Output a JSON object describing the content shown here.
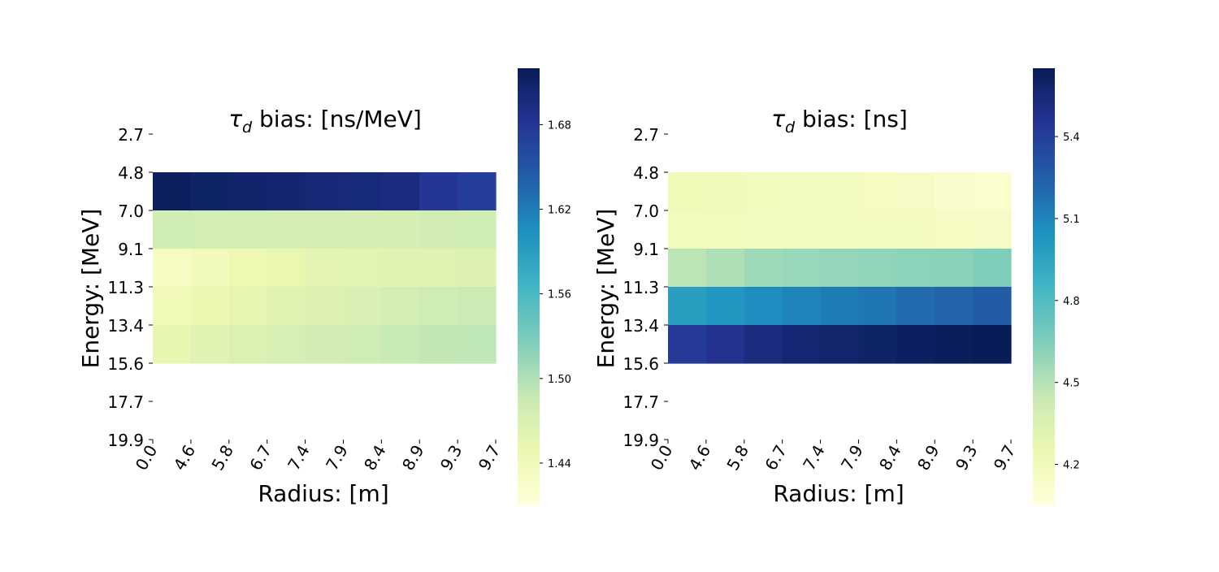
{
  "colormap": [
    "#ffffd9",
    "#edf8b1",
    "#c7e9b4",
    "#7fcdbb",
    "#41b6c4",
    "#1d91c0",
    "#225ea8",
    "#253494",
    "#081d58"
  ],
  "chart_data": [
    {
      "type": "heatmap",
      "title_symbol": "τ",
      "title_sub": "d",
      "title_rest": " bias: [ns/MeV]",
      "xlabel": "Radius: [m]",
      "ylabel": "Energy: [MeV]",
      "x_ticks": [
        "0.0",
        "4.6",
        "5.8",
        "6.7",
        "7.4",
        "7.9",
        "8.4",
        "8.9",
        "9.3",
        "9.7"
      ],
      "y_ticks": [
        "2.7",
        "4.8",
        "7.0",
        "9.1",
        "11.3",
        "13.4",
        "15.6",
        "17.7",
        "19.9"
      ],
      "rows": [
        {
          "energy_from": 4.8,
          "energy_to": 7.0,
          "values": [
            1.715,
            1.71,
            1.707,
            1.705,
            1.7,
            1.698,
            1.695,
            1.68,
            1.672
          ]
        },
        {
          "energy_from": 7.0,
          "energy_to": 9.1,
          "values": [
            1.478,
            1.475,
            1.475,
            1.474,
            1.474,
            1.474,
            1.474,
            1.477,
            1.478
          ]
        },
        {
          "energy_from": 9.1,
          "energy_to": 11.3,
          "values": [
            1.432,
            1.44,
            1.447,
            1.452,
            1.458,
            1.46,
            1.462,
            1.463,
            1.465
          ]
        },
        {
          "energy_from": 11.3,
          "energy_to": 13.4,
          "values": [
            1.442,
            1.45,
            1.456,
            1.462,
            1.466,
            1.47,
            1.475,
            1.48,
            1.482
          ]
        },
        {
          "energy_from": 13.4,
          "energy_to": 15.6,
          "values": [
            1.455,
            1.462,
            1.467,
            1.472,
            1.476,
            1.48,
            1.486,
            1.49,
            1.492
          ]
        }
      ],
      "colorbar_ticks": [
        "1.44",
        "1.50",
        "1.56",
        "1.62",
        "1.68"
      ],
      "vmin": 1.41,
      "vmax": 1.72
    },
    {
      "type": "heatmap",
      "title_symbol": "τ",
      "title_sub": "d",
      "title_rest": " bias: [ns]",
      "xlabel": "Radius: [m]",
      "ylabel": "Energy: [MeV]",
      "x_ticks": [
        "0.0",
        "4.6",
        "5.8",
        "6.7",
        "7.4",
        "7.9",
        "8.4",
        "8.9",
        "9.3",
        "9.7"
      ],
      "y_ticks": [
        "2.7",
        "4.8",
        "7.0",
        "9.1",
        "11.3",
        "13.4",
        "15.6",
        "17.7",
        "19.9"
      ],
      "rows": [
        {
          "energy_from": 4.8,
          "energy_to": 7.0,
          "values": [
            4.22,
            4.2,
            4.19,
            4.18,
            4.17,
            4.16,
            4.15,
            4.12,
            4.1
          ]
        },
        {
          "energy_from": 7.0,
          "energy_to": 9.1,
          "values": [
            4.19,
            4.19,
            4.18,
            4.18,
            4.17,
            4.17,
            4.17,
            4.16,
            4.15
          ]
        },
        {
          "energy_from": 9.1,
          "energy_to": 11.3,
          "values": [
            4.48,
            4.52,
            4.56,
            4.58,
            4.59,
            4.6,
            4.61,
            4.62,
            4.65
          ]
        },
        {
          "energy_from": 11.3,
          "energy_to": 13.4,
          "values": [
            4.98,
            5.02,
            5.06,
            5.1,
            5.13,
            5.16,
            5.2,
            5.23,
            5.26
          ]
        },
        {
          "energy_from": 13.4,
          "energy_to": 15.6,
          "values": [
            5.42,
            5.47,
            5.52,
            5.56,
            5.58,
            5.6,
            5.62,
            5.64,
            5.65
          ]
        }
      ],
      "colorbar_ticks": [
        "4.2",
        "4.5",
        "4.8",
        "5.1",
        "5.4"
      ],
      "vmin": 4.05,
      "vmax": 5.65
    }
  ]
}
